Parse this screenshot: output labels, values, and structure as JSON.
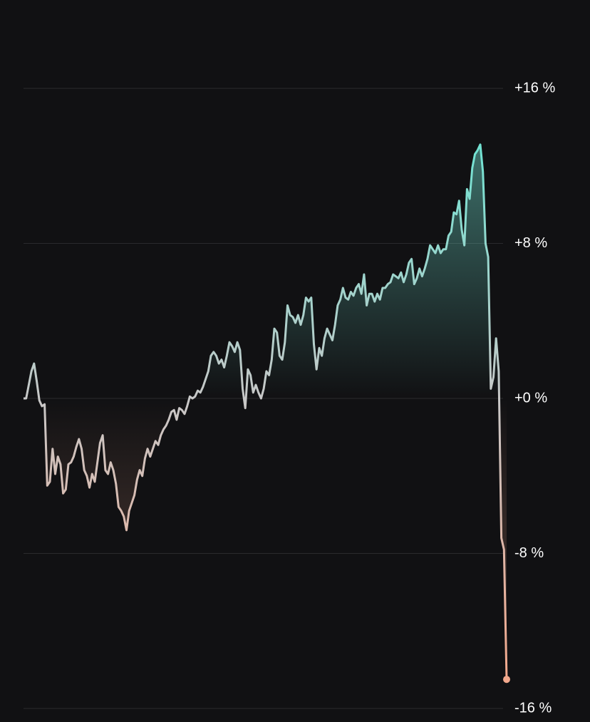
{
  "chart_data": {
    "type": "area-line",
    "values": [
      0,
      0,
      0.7,
      1.4,
      1.8,
      0.9,
      -0.1,
      -0.4,
      -0.3,
      -4.5,
      -4.3,
      -2.6,
      -3.9,
      -3.0,
      -3.4,
      -4.9,
      -4.7,
      -3.4,
      -3.3,
      -3.0,
      -2.5,
      -2.1,
      -2.6,
      -3.7,
      -4.0,
      -4.6,
      -3.9,
      -4.3,
      -3.3,
      -2.3,
      -1.9,
      -3.7,
      -3.9,
      -3.3,
      -3.7,
      -4.4,
      -5.6,
      -5.8,
      -6.1,
      -6.8,
      -5.8,
      -5.4,
      -5.0,
      -4.2,
      -3.7,
      -4.0,
      -3.1,
      -2.6,
      -3.0,
      -2.6,
      -2.2,
      -2.4,
      -1.9,
      -1.6,
      -1.4,
      -1.1,
      -0.7,
      -0.6,
      -1.1,
      -0.5,
      -0.6,
      -0.8,
      -0.4,
      0.1,
      0,
      0.1,
      0.4,
      0.3,
      0.6,
      1.0,
      1.4,
      2.2,
      2.4,
      2.2,
      1.8,
      2.0,
      1.6,
      2.2,
      2.9,
      2.7,
      2.4,
      2.9,
      2.5,
      0.5,
      -0.5,
      1.5,
      1.2,
      0.3,
      0.7,
      0.3,
      0,
      0.5,
      1.4,
      1.2,
      2.0,
      3.6,
      3.4,
      2.2,
      2.0,
      2.9,
      4.8,
      4.3,
      4.2,
      3.9,
      4.3,
      3.8,
      4.3,
      5.2,
      5.0,
      5.2,
      2.8,
      1.5,
      2.6,
      2.2,
      3.1,
      3.6,
      3.3,
      3.0,
      3.8,
      4.8,
      5.1,
      5.7,
      5.2,
      5.1,
      5.5,
      5.3,
      5.7,
      5.9,
      5.4,
      6.4,
      4.8,
      5.4,
      5.4,
      5.0,
      5.4,
      5.1,
      5.7,
      5.7,
      5.9,
      6.0,
      6.4,
      6.3,
      6.2,
      6.5,
      6.0,
      6.4,
      7.0,
      7.2,
      5.9,
      6.2,
      6.7,
      6.3,
      6.7,
      7.2,
      7.9,
      7.7,
      7.5,
      7.9,
      7.5,
      7.7,
      7.7,
      8.4,
      8.6,
      9.6,
      9.5,
      10.2,
      8.7,
      7.9,
      10.8,
      10.3,
      11.9,
      12.6,
      12.8,
      13.1,
      11.7,
      8.0,
      7.3,
      0.5,
      1.1,
      3.1,
      1.4,
      -7.2,
      -7.8,
      -14.5
    ],
    "ylim": [
      -16,
      16
    ],
    "yticks": [
      {
        "value": 16,
        "label": "+16 %"
      },
      {
        "value": 8,
        "label": "+8 %"
      },
      {
        "value": 0,
        "label": "+0 %"
      },
      {
        "value": -8,
        "label": "-8 %"
      },
      {
        "value": -16,
        "label": "-16 %"
      }
    ],
    "grid": true,
    "positive_color": "#72e2d2",
    "negative_color": "#f2a88c"
  }
}
